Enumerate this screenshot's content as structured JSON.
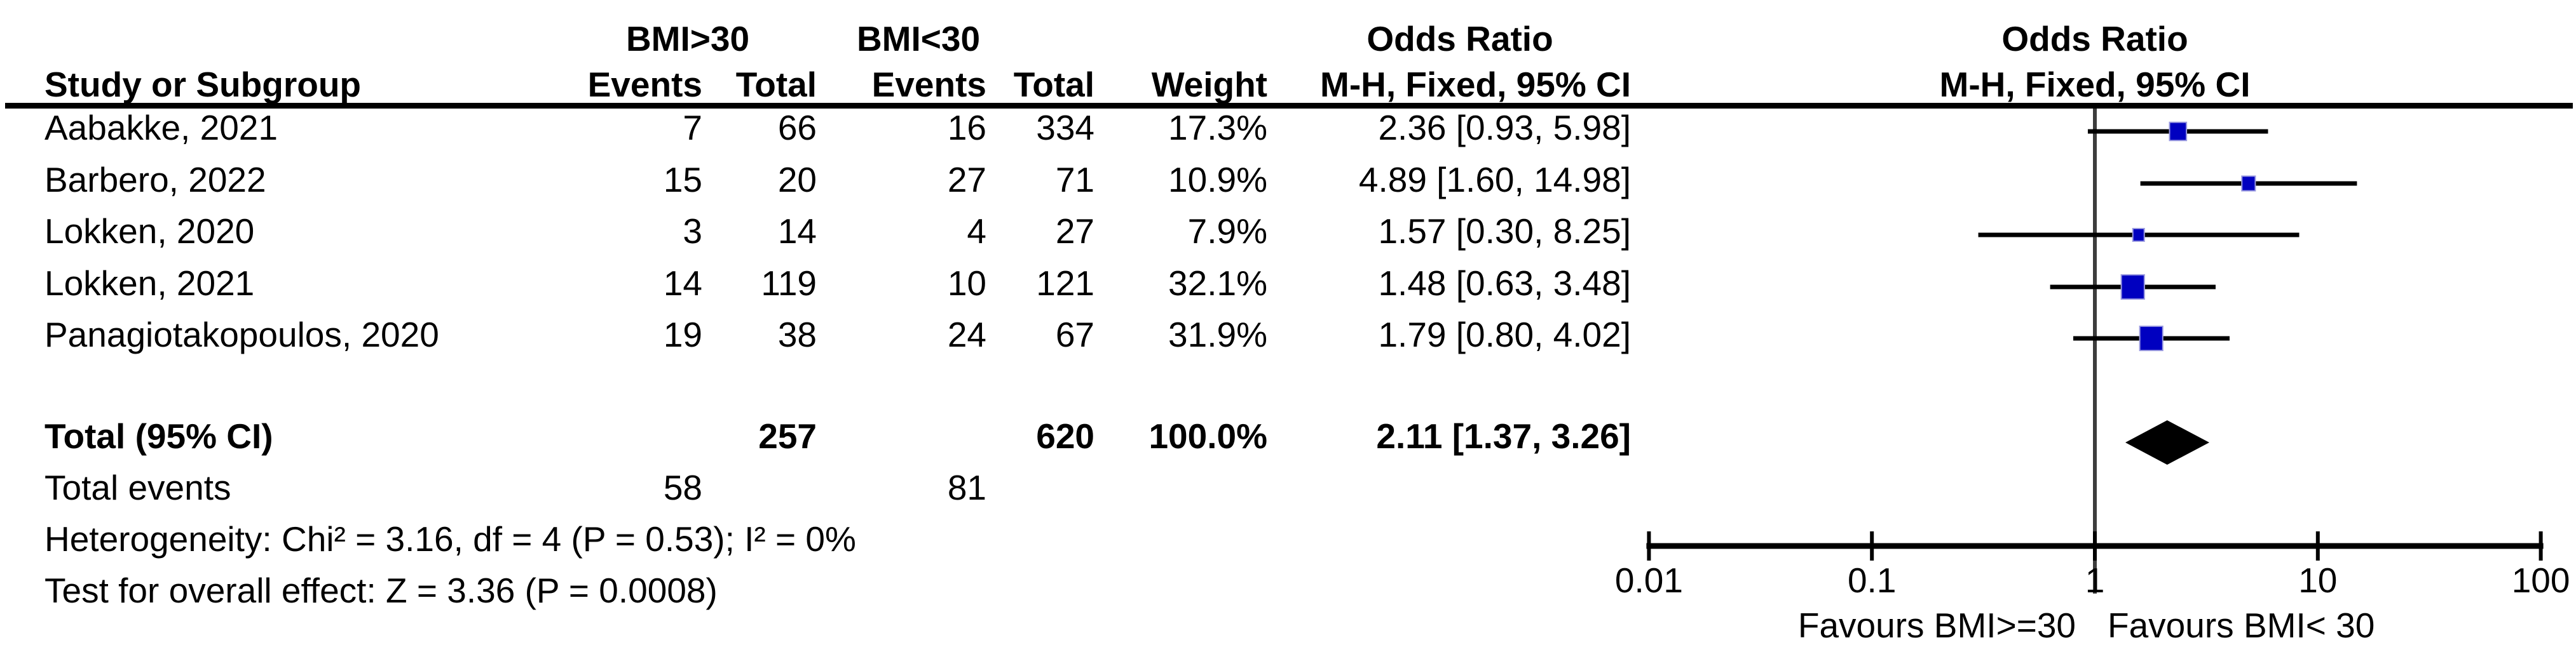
{
  "table": {
    "study_header": "Study or Subgroup",
    "group1_header": "BMI>30",
    "group2_header": "BMI<30",
    "events_header_1": "Events",
    "total_header_1": "Total",
    "events_header_2": "Events",
    "total_header_2": "Total",
    "weight_header": "Weight",
    "or_header_left": "Odds Ratio",
    "method_header_left": "M-H, Fixed, 95% CI",
    "or_header_right": "Odds Ratio",
    "method_header_right": "M-H, Fixed, 95% CI",
    "rows": [
      {
        "study": "Aabakke, 2021",
        "events1": "7",
        "total1": "66",
        "events2": "16",
        "total2": "334",
        "weight": "17.3%",
        "ci_text": "2.36 [0.93, 5.98]"
      },
      {
        "study": "Barbero, 2022",
        "events1": "15",
        "total1": "20",
        "events2": "27",
        "total2": "71",
        "weight": "10.9%",
        "ci_text": "4.89 [1.60, 14.98]"
      },
      {
        "study": "Lokken, 2020",
        "events1": "3",
        "total1": "14",
        "events2": "4",
        "total2": "27",
        "weight": "7.9%",
        "ci_text": "1.57 [0.30, 8.25]"
      },
      {
        "study": "Lokken, 2021",
        "events1": "14",
        "total1": "119",
        "events2": "10",
        "total2": "121",
        "weight": "32.1%",
        "ci_text": "1.48 [0.63, 3.48]"
      },
      {
        "study": "Panagiotakopoulos, 2020",
        "events1": "19",
        "total1": "38",
        "events2": "24",
        "total2": "67",
        "weight": "31.9%",
        "ci_text": "1.79 [0.80, 4.02]"
      }
    ],
    "total_row": {
      "label": "Total (95% CI)",
      "total1": "257",
      "total2": "620",
      "weight": "100.0%",
      "ci_text": "2.11 [1.37, 3.26]"
    },
    "total_events_row": {
      "label": "Total events",
      "events1": "58",
      "events2": "81"
    },
    "heterogeneity": "Heterogeneity: Chi² = 3.16, df = 4 (P = 0.53); I² = 0%",
    "overall_effect": "Test for overall effect: Z = 3.36 (P = 0.0008)"
  },
  "chart_data": {
    "type": "forest",
    "x_scale": "log10",
    "xlim": [
      0.01,
      100
    ],
    "axis_ticks": [
      0.01,
      0.1,
      1,
      10,
      100
    ],
    "tick_labels": [
      "0.01",
      "0.1",
      "1",
      "10",
      "100"
    ],
    "center_line_value": 1,
    "favours_left": "Favours BMI>=30",
    "favours_right": "Favours BMI< 30",
    "effect_measure": "Odds Ratio",
    "method": "M-H, Fixed, 95% CI",
    "studies": [
      {
        "name": "Aabakke, 2021",
        "or": 2.36,
        "ci_low": 0.93,
        "ci_high": 5.98,
        "weight_pct": 17.3
      },
      {
        "name": "Barbero, 2022",
        "or": 4.89,
        "ci_low": 1.6,
        "ci_high": 14.98,
        "weight_pct": 10.9
      },
      {
        "name": "Lokken, 2020",
        "or": 1.57,
        "ci_low": 0.3,
        "ci_high": 8.25,
        "weight_pct": 7.9
      },
      {
        "name": "Lokken, 2021",
        "or": 1.48,
        "ci_low": 0.63,
        "ci_high": 3.48,
        "weight_pct": 32.1
      },
      {
        "name": "Panagiotakopoulos, 2020",
        "or": 1.79,
        "ci_low": 0.8,
        "ci_high": 4.02,
        "weight_pct": 31.9
      }
    ],
    "total": {
      "label": "Total (95% CI)",
      "or": 2.11,
      "ci_low": 1.37,
      "ci_high": 3.26,
      "weight_pct": 100.0
    },
    "heterogeneity": {
      "chi2": 3.16,
      "df": 4,
      "p": 0.53,
      "i2_pct": 0
    },
    "overall_effect": {
      "z": 3.36,
      "p": 0.0008
    },
    "colors": {
      "square": "#0000C0",
      "line": "#000000",
      "diamond": "#000000",
      "center_line": "#3d3d3d"
    }
  }
}
